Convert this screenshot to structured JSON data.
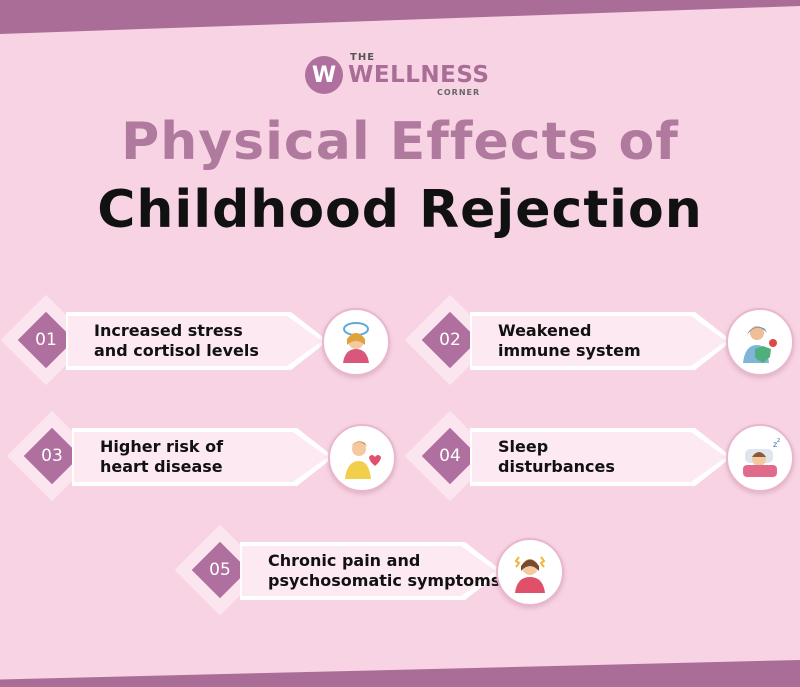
{
  "brand": {
    "logo_letter": "W",
    "the": "THE",
    "name": "WELLNESS",
    "corner": "CORNER"
  },
  "title": {
    "line1": "Physical Effects of",
    "line2": "Childhood Rejection"
  },
  "items": [
    {
      "number": "01",
      "line1": "Increased stress",
      "line2": "and cortisol levels",
      "icon": "stressed-woman-icon"
    },
    {
      "number": "02",
      "line1": "Weakened",
      "line2": "immune system",
      "icon": "shield-virus-icon"
    },
    {
      "number": "03",
      "line1": "Higher risk of",
      "line2": "heart disease",
      "icon": "heart-pain-icon"
    },
    {
      "number": "04",
      "line1": "Sleep",
      "line2": "disturbances",
      "icon": "sleeping-person-icon"
    },
    {
      "number": "05",
      "line1": "Chronic pain and",
      "line2": "psychosomatic symptoms",
      "icon": "pain-person-icon"
    }
  ],
  "colors": {
    "background": "#f8d3e3",
    "accent": "#b0709f",
    "title_accent": "#b07a9f"
  }
}
